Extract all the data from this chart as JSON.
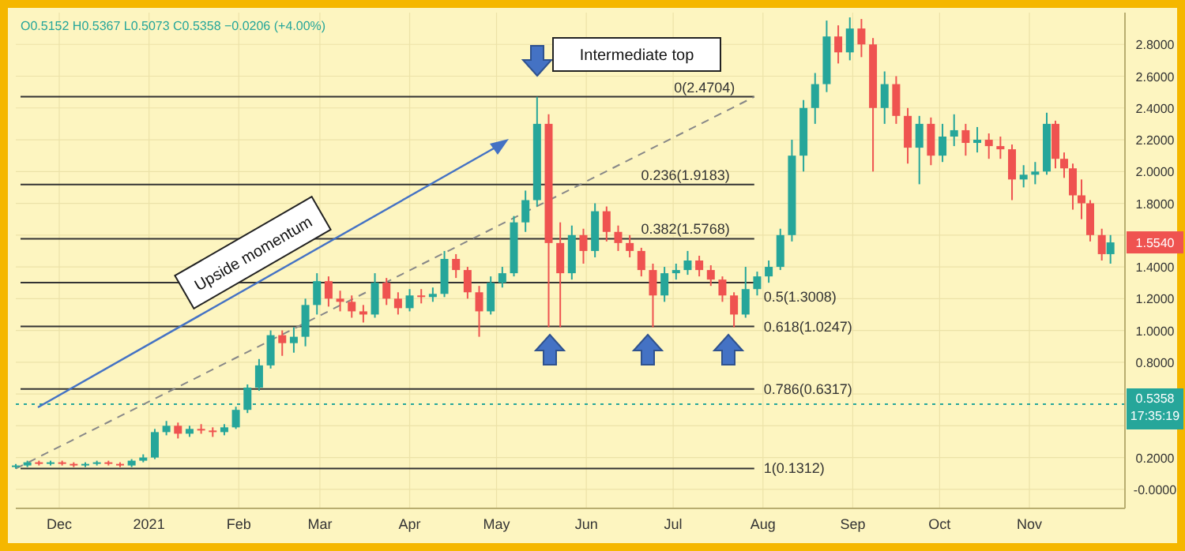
{
  "chart_data": {
    "type": "candlestick",
    "annotations": [
      "O0.5152 H0.5367 L0.5073 C0.5358 −0.0206 (+4.00%)",
      "Upside momentum",
      "Intermediate top",
      "17:35:19",
      {
        "text": "1.5540",
        "x": "2021-11-29",
        "y": 1.554
      }
    ],
    "x": [
      "2020-11-16",
      "2020-11-20",
      "2020-11-24",
      "2020-11-28",
      "2020-12-02",
      "2020-12-06",
      "2020-12-10",
      "2020-12-14",
      "2020-12-18",
      "2020-12-22",
      "2020-12-26",
      "2020-12-30",
      "2021-01-03",
      "2021-01-07",
      "2021-01-11",
      "2021-01-15",
      "2021-01-19",
      "2021-01-23",
      "2021-01-27",
      "2021-01-31",
      "2021-02-04",
      "2021-02-08",
      "2021-02-12",
      "2021-02-16",
      "2021-02-20",
      "2021-02-24",
      "2021-02-28",
      "2021-03-04",
      "2021-03-08",
      "2021-03-12",
      "2021-03-16",
      "2021-03-20",
      "2021-03-24",
      "2021-03-28",
      "2021-04-01",
      "2021-04-05",
      "2021-04-09",
      "2021-04-13",
      "2021-04-17",
      "2021-04-21",
      "2021-04-25",
      "2021-04-29",
      "2021-05-03",
      "2021-05-07",
      "2021-05-11",
      "2021-05-15",
      "2021-05-19",
      "2021-05-23",
      "2021-05-27",
      "2021-05-31",
      "2021-06-04",
      "2021-06-08",
      "2021-06-12",
      "2021-06-16",
      "2021-06-20",
      "2021-06-24",
      "2021-06-28",
      "2021-07-02",
      "2021-07-06",
      "2021-07-10",
      "2021-07-14",
      "2021-07-18",
      "2021-07-22",
      "2021-07-26",
      "2021-07-30",
      "2021-08-03",
      "2021-08-07",
      "2021-08-11",
      "2021-08-15",
      "2021-08-19",
      "2021-08-23",
      "2021-08-27",
      "2021-08-31",
      "2021-09-04",
      "2021-09-08",
      "2021-09-12",
      "2021-09-16",
      "2021-09-20",
      "2021-09-24",
      "2021-09-28",
      "2021-10-02",
      "2021-10-06",
      "2021-10-10",
      "2021-10-14",
      "2021-10-18",
      "2021-10-22",
      "2021-10-26",
      "2021-10-30",
      "2021-11-03",
      "2021-11-07",
      "2021-11-10",
      "2021-11-13",
      "2021-11-16",
      "2021-11-19",
      "2021-11-22",
      "2021-11-26",
      "2021-11-29"
    ],
    "ohlc": [
      [
        0.14,
        0.16,
        0.13,
        0.15
      ],
      [
        0.15,
        0.18,
        0.14,
        0.17
      ],
      [
        0.17,
        0.18,
        0.15,
        0.16
      ],
      [
        0.16,
        0.18,
        0.15,
        0.17
      ],
      [
        0.17,
        0.18,
        0.15,
        0.16
      ],
      [
        0.16,
        0.17,
        0.14,
        0.15
      ],
      [
        0.15,
        0.17,
        0.14,
        0.16
      ],
      [
        0.16,
        0.18,
        0.15,
        0.17
      ],
      [
        0.17,
        0.18,
        0.15,
        0.16
      ],
      [
        0.16,
        0.17,
        0.14,
        0.15
      ],
      [
        0.15,
        0.19,
        0.14,
        0.18
      ],
      [
        0.18,
        0.22,
        0.17,
        0.2
      ],
      [
        0.2,
        0.38,
        0.19,
        0.36
      ],
      [
        0.36,
        0.43,
        0.34,
        0.4
      ],
      [
        0.4,
        0.42,
        0.32,
        0.35
      ],
      [
        0.35,
        0.4,
        0.33,
        0.38
      ],
      [
        0.38,
        0.41,
        0.35,
        0.37
      ],
      [
        0.37,
        0.39,
        0.33,
        0.36
      ],
      [
        0.36,
        0.41,
        0.34,
        0.39
      ],
      [
        0.39,
        0.52,
        0.38,
        0.5
      ],
      [
        0.5,
        0.66,
        0.48,
        0.64
      ],
      [
        0.64,
        0.82,
        0.62,
        0.78
      ],
      [
        0.78,
        1.0,
        0.76,
        0.97
      ],
      [
        0.97,
        1.0,
        0.84,
        0.92
      ],
      [
        0.92,
        1.02,
        0.86,
        0.96
      ],
      [
        0.96,
        1.2,
        0.9,
        1.16
      ],
      [
        1.16,
        1.36,
        1.1,
        1.31
      ],
      [
        1.31,
        1.34,
        1.15,
        1.2
      ],
      [
        1.2,
        1.25,
        1.12,
        1.18
      ],
      [
        1.18,
        1.22,
        1.08,
        1.12
      ],
      [
        1.12,
        1.16,
        1.05,
        1.1
      ],
      [
        1.1,
        1.36,
        1.08,
        1.3
      ],
      [
        1.3,
        1.33,
        1.16,
        1.2
      ],
      [
        1.2,
        1.24,
        1.1,
        1.14
      ],
      [
        1.14,
        1.26,
        1.12,
        1.22
      ],
      [
        1.22,
        1.26,
        1.17,
        1.21
      ],
      [
        1.21,
        1.27,
        1.18,
        1.23
      ],
      [
        1.23,
        1.5,
        1.21,
        1.45
      ],
      [
        1.45,
        1.48,
        1.33,
        1.38
      ],
      [
        1.38,
        1.4,
        1.2,
        1.24
      ],
      [
        1.24,
        1.28,
        0.96,
        1.12
      ],
      [
        1.12,
        1.34,
        1.1,
        1.3
      ],
      [
        1.3,
        1.4,
        1.27,
        1.36
      ],
      [
        1.36,
        1.72,
        1.34,
        1.68
      ],
      [
        1.68,
        1.88,
        1.62,
        1.82
      ],
      [
        1.82,
        2.47,
        1.78,
        2.3
      ],
      [
        2.3,
        2.36,
        1.02,
        1.55
      ],
      [
        1.55,
        1.68,
        1.02,
        1.36
      ],
      [
        1.36,
        1.66,
        1.32,
        1.6
      ],
      [
        1.6,
        1.64,
        1.42,
        1.5
      ],
      [
        1.5,
        1.8,
        1.46,
        1.75
      ],
      [
        1.75,
        1.78,
        1.56,
        1.62
      ],
      [
        1.62,
        1.66,
        1.5,
        1.55
      ],
      [
        1.55,
        1.6,
        1.46,
        1.5
      ],
      [
        1.5,
        1.52,
        1.34,
        1.38
      ],
      [
        1.38,
        1.42,
        1.02,
        1.22
      ],
      [
        1.22,
        1.4,
        1.18,
        1.36
      ],
      [
        1.36,
        1.42,
        1.32,
        1.38
      ],
      [
        1.38,
        1.5,
        1.35,
        1.44
      ],
      [
        1.44,
        1.47,
        1.34,
        1.38
      ],
      [
        1.38,
        1.41,
        1.28,
        1.32
      ],
      [
        1.32,
        1.34,
        1.18,
        1.22
      ],
      [
        1.22,
        1.24,
        1.02,
        1.1
      ],
      [
        1.1,
        1.4,
        1.08,
        1.26
      ],
      [
        1.26,
        1.37,
        1.22,
        1.34
      ],
      [
        1.34,
        1.44,
        1.3,
        1.4
      ],
      [
        1.4,
        1.64,
        1.38,
        1.6
      ],
      [
        1.6,
        2.2,
        1.56,
        2.1
      ],
      [
        2.1,
        2.45,
        2.0,
        2.4
      ],
      [
        2.4,
        2.62,
        2.3,
        2.55
      ],
      [
        2.55,
        2.95,
        2.5,
        2.85
      ],
      [
        2.85,
        2.92,
        2.68,
        2.75
      ],
      [
        2.75,
        2.97,
        2.7,
        2.9
      ],
      [
        2.9,
        2.96,
        2.72,
        2.8
      ],
      [
        2.8,
        2.84,
        2.0,
        2.4
      ],
      [
        2.4,
        2.63,
        2.3,
        2.55
      ],
      [
        2.55,
        2.6,
        2.3,
        2.35
      ],
      [
        2.35,
        2.4,
        2.05,
        2.15
      ],
      [
        2.15,
        2.35,
        1.92,
        2.3
      ],
      [
        2.3,
        2.34,
        2.04,
        2.1
      ],
      [
        2.1,
        2.3,
        2.06,
        2.22
      ],
      [
        2.22,
        2.36,
        2.16,
        2.26
      ],
      [
        2.26,
        2.3,
        2.1,
        2.18
      ],
      [
        2.18,
        2.28,
        2.12,
        2.2
      ],
      [
        2.2,
        2.24,
        2.08,
        2.16
      ],
      [
        2.16,
        2.22,
        2.08,
        2.14
      ],
      [
        2.14,
        2.17,
        1.82,
        1.95
      ],
      [
        1.95,
        2.04,
        1.9,
        1.98
      ],
      [
        1.98,
        2.06,
        1.92,
        2.0
      ],
      [
        2.0,
        2.37,
        1.98,
        2.3
      ],
      [
        2.3,
        2.32,
        2.02,
        2.08
      ],
      [
        2.08,
        2.12,
        1.96,
        2.02
      ],
      [
        2.02,
        2.05,
        1.76,
        1.85
      ],
      [
        1.85,
        1.95,
        1.7,
        1.8
      ],
      [
        1.8,
        1.82,
        1.56,
        1.6
      ],
      [
        1.6,
        1.64,
        1.44,
        1.48
      ],
      [
        1.48,
        1.6,
        1.42,
        1.554
      ]
    ],
    "series": [
      {
        "type": "line",
        "x": [
          "2020-11-16",
          "2021-07-29"
        ],
        "values": [
          0.13,
          2.47
        ],
        "color": "#888888",
        "line_style": "dashed"
      }
    ],
    "xlim": [
      "2020-11-16",
      "2021-12-04"
    ],
    "xticks": [
      {
        "value": "2020-12-01",
        "label": "Dec"
      },
      {
        "value": "2021-01-01",
        "label": "2021"
      },
      {
        "value": "2021-02-01",
        "label": "Feb"
      },
      {
        "value": "2021-03-01",
        "label": "Mar"
      },
      {
        "value": "2021-04-01",
        "label": "Apr"
      },
      {
        "value": "2021-05-01",
        "label": "May"
      },
      {
        "value": "2021-06-01",
        "label": "Jun"
      },
      {
        "value": "2021-07-01",
        "label": "Jul"
      },
      {
        "value": "2021-08-01",
        "label": "Aug"
      },
      {
        "value": "2021-09-01",
        "label": "Sep"
      },
      {
        "value": "2021-10-01",
        "label": "Oct"
      },
      {
        "value": "2021-11-01",
        "label": "Nov"
      }
    ],
    "ylim": [
      -0.12,
      3.0
    ],
    "yticks": [
      {
        "value": 0,
        "label": "-0.0000"
      },
      {
        "value": 0.2,
        "label": "0.2000"
      },
      {
        "value": 0.4,
        "label": null
      },
      {
        "value": 0.6,
        "label": null
      },
      {
        "value": 0.8,
        "label": "0.8000"
      },
      {
        "value": 1.0,
        "label": "1.0000"
      },
      {
        "value": 1.2,
        "label": "1.2000"
      },
      {
        "value": 1.4,
        "label": "1.4000"
      },
      {
        "value": 1.6,
        "label": null
      },
      {
        "value": 1.8,
        "label": "1.8000"
      },
      {
        "value": 2.0,
        "label": "2.0000"
      },
      {
        "value": 2.2,
        "label": "2.2000"
      },
      {
        "value": 2.4,
        "label": "2.4000"
      },
      {
        "value": 2.6,
        "label": "2.6000"
      },
      {
        "value": 2.8,
        "label": "2.8000"
      }
    ],
    "ref_lines": [
      {
        "axis": "y",
        "value": 2.4704,
        "label": "0(2.4704)",
        "color": "#333333"
      },
      {
        "axis": "y",
        "value": 1.9183,
        "label": "0.236(1.9183)",
        "color": "#333333"
      },
      {
        "axis": "y",
        "value": 1.5768,
        "label": "0.382(1.5768)",
        "color": "#333333"
      },
      {
        "axis": "y",
        "value": 1.3008,
        "label": "0.5(1.3008)",
        "color": "#333333"
      },
      {
        "axis": "y",
        "value": 1.0247,
        "label": "0.618(1.0247)",
        "color": "#333333"
      },
      {
        "axis": "y",
        "value": 0.6317,
        "label": "0.786(0.6317)",
        "color": "#333333"
      },
      {
        "axis": "y",
        "value": 0.1312,
        "label": "1(0.1312)",
        "color": "#333333"
      },
      {
        "axis": "y",
        "value": 0.5358,
        "label": "0.5358",
        "color": "#26a69a",
        "line_style": "dotted"
      }
    ],
    "grid": true,
    "legend": false
  }
}
